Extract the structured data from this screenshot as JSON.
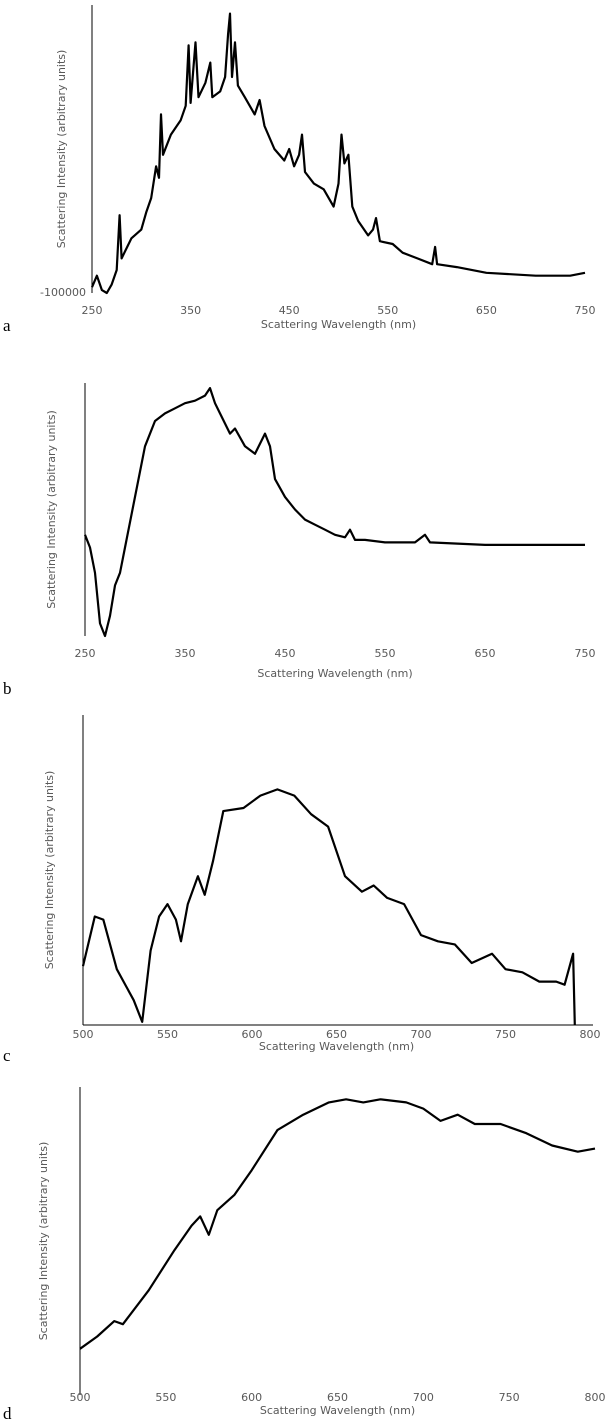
{
  "chart_data": [
    {
      "type": "line",
      "panel_label": "a",
      "x_label": "Scattering Wavelength (nm)",
      "y_label": "Scattering Intensity (arbitrary units)",
      "axis_lines": [
        "left"
      ],
      "color": "#000000",
      "xlim": [
        250,
        750
      ],
      "xticks": [
        250,
        350,
        450,
        550,
        650,
        750
      ],
      "ylim": [
        -100000,
        1900000
      ],
      "yticks": [
        -100000
      ],
      "x": [
        250,
        255,
        260,
        265,
        270,
        275,
        278,
        280,
        290,
        300,
        305,
        310,
        315,
        318,
        320,
        322,
        330,
        340,
        345,
        348,
        350,
        355,
        358,
        365,
        370,
        372,
        380,
        385,
        388,
        390,
        392,
        395,
        398,
        405,
        415,
        420,
        425,
        435,
        445,
        450,
        455,
        460,
        463,
        466,
        475,
        485,
        495,
        500,
        503,
        506,
        510,
        514,
        520,
        530,
        535,
        538,
        542,
        555,
        565,
        580,
        595,
        598,
        600,
        620,
        650,
        700,
        735,
        750
      ],
      "values": [
        -60000,
        20000,
        -80000,
        -100000,
        -40000,
        60000,
        440000,
        140000,
        280000,
        340000,
        460000,
        560000,
        780000,
        700000,
        1140000,
        860000,
        1000000,
        1100000,
        1200000,
        1620000,
        1220000,
        1640000,
        1260000,
        1360000,
        1500000,
        1260000,
        1300000,
        1400000,
        1700000,
        1840000,
        1400000,
        1640000,
        1340000,
        1260000,
        1140000,
        1240000,
        1060000,
        900000,
        820000,
        900000,
        780000,
        860000,
        1000000,
        740000,
        660000,
        620000,
        500000,
        660000,
        1000000,
        800000,
        860000,
        500000,
        400000,
        300000,
        340000,
        420000,
        260000,
        240000,
        180000,
        140000,
        100000,
        220000,
        100000,
        80000,
        40000,
        20000,
        20000,
        40000
      ]
    },
    {
      "type": "line",
      "panel_label": "b",
      "x_label": "Scattering Wavelength (nm)",
      "y_label": "Scattering Intensity (arbitrary units)",
      "axis_lines": [
        "left"
      ],
      "color": "#000000",
      "xlim": [
        250,
        750
      ],
      "xticks": [
        250,
        350,
        450,
        550,
        650,
        750
      ],
      "ylim": [
        0,
        100
      ],
      "x": [
        250,
        255,
        260,
        265,
        270,
        275,
        280,
        285,
        290,
        300,
        310,
        320,
        330,
        340,
        350,
        360,
        370,
        375,
        380,
        385,
        395,
        400,
        410,
        420,
        430,
        435,
        440,
        450,
        460,
        470,
        480,
        490,
        500,
        510,
        515,
        520,
        530,
        550,
        580,
        590,
        595,
        650,
        700,
        750
      ],
      "values": [
        40,
        35,
        25,
        5,
        0,
        8,
        20,
        25,
        35,
        55,
        75,
        85,
        88,
        90,
        92,
        93,
        95,
        98,
        92,
        88,
        80,
        82,
        75,
        72,
        80,
        75,
        62,
        55,
        50,
        46,
        44,
        42,
        40,
        39,
        42,
        38,
        38,
        37,
        37,
        40,
        37,
        36,
        36,
        36
      ]
    },
    {
      "type": "line",
      "panel_label": "c",
      "x_label": "Scattering Wavelength (nm)",
      "y_label": "Scattering Intensity (arbitrary units)",
      "axis_lines": [
        "left",
        "bottom"
      ],
      "color": "#000000",
      "xlim": [
        500,
        800
      ],
      "xticks": [
        500,
        550,
        600,
        650,
        700,
        750,
        800
      ],
      "ylim": [
        0,
        100
      ],
      "x": [
        500,
        507,
        512,
        520,
        530,
        535,
        540,
        545,
        550,
        555,
        558,
        562,
        568,
        572,
        577,
        583,
        595,
        605,
        615,
        625,
        635,
        645,
        655,
        665,
        672,
        680,
        690,
        700,
        710,
        720,
        730,
        742,
        750,
        760,
        770,
        780,
        785,
        790,
        791
      ],
      "values": [
        19,
        35,
        34,
        18,
        8,
        1,
        24,
        35,
        39,
        34,
        27,
        39,
        48,
        42,
        53,
        69,
        70,
        74,
        76,
        74,
        68,
        64,
        48,
        43,
        45,
        41,
        39,
        29,
        27,
        26,
        20,
        23,
        18,
        17,
        14,
        14,
        13,
        23,
        0
      ]
    },
    {
      "type": "line",
      "panel_label": "d",
      "x_label": "Scattering Wavelength (nm)",
      "y_label": "Scattering Intensity (arbitrary units)",
      "axis_lines": [
        "left"
      ],
      "color": "#000000",
      "xlim": [
        500,
        800
      ],
      "xticks": [
        500,
        550,
        600,
        650,
        700,
        750,
        800
      ],
      "ylim": [
        0,
        100
      ],
      "x": [
        500,
        510,
        520,
        525,
        540,
        555,
        565,
        570,
        575,
        580,
        590,
        600,
        615,
        630,
        645,
        655,
        665,
        675,
        690,
        700,
        710,
        720,
        730,
        745,
        760,
        775,
        790,
        800
      ],
      "values": [
        15,
        19,
        24,
        23,
        34,
        47,
        55,
        58,
        52,
        60,
        65,
        73,
        86,
        91,
        95,
        96,
        95,
        96,
        95,
        93,
        89,
        91,
        88,
        88,
        85,
        81,
        79,
        80
      ]
    }
  ]
}
